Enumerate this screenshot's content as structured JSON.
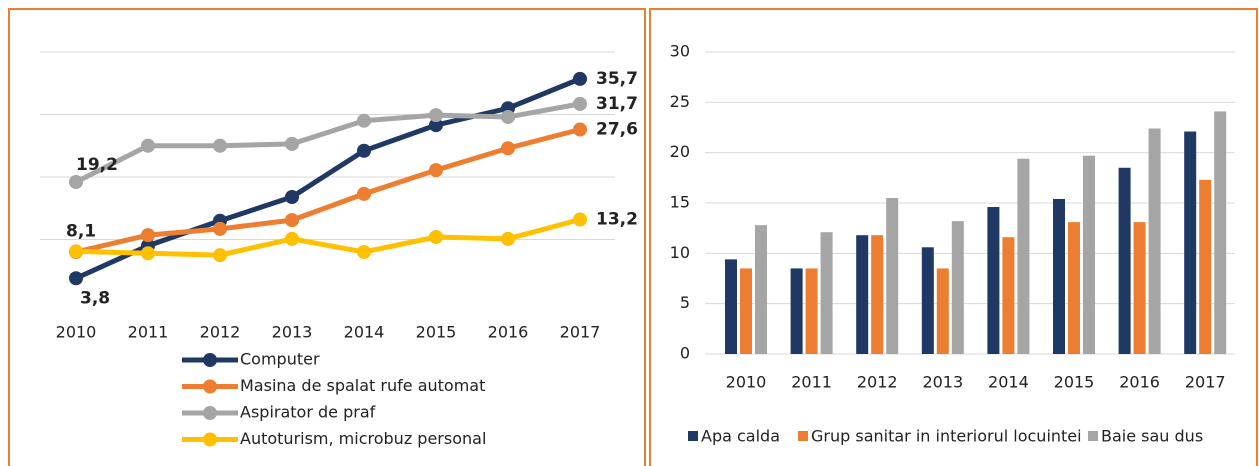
{
  "chart_data": [
    {
      "type": "line",
      "categories": [
        "2010",
        "2011",
        "2012",
        "2013",
        "2014",
        "2015",
        "2016",
        "2017"
      ],
      "ylim": [
        0,
        40
      ],
      "yticks": [
        10,
        20,
        30,
        40
      ],
      "grid": true,
      "series": [
        {
          "name": "Computer",
          "color": "#203864",
          "values": [
            3.8,
            9.0,
            13.0,
            16.8,
            24.2,
            28.3,
            31.0,
            35.7
          ],
          "value_labels": [
            "3,8",
            null,
            null,
            null,
            null,
            null,
            null,
            "35,7"
          ]
        },
        {
          "name": "Masina de spalat rufe automat",
          "color": "#ed7d31",
          "values": [
            8.0,
            10.7,
            11.7,
            13.1,
            17.3,
            21.1,
            24.6,
            27.6
          ],
          "value_labels": [
            null,
            null,
            null,
            null,
            null,
            null,
            null,
            "27,6"
          ]
        },
        {
          "name": "Aspirator de praf",
          "color": "#a5a5a5",
          "values": [
            19.2,
            25.0,
            25.0,
            25.3,
            29.0,
            29.9,
            29.6,
            31.7
          ],
          "value_labels": [
            "19,2",
            null,
            null,
            null,
            null,
            null,
            null,
            "31,7"
          ]
        },
        {
          "name": "Autoturism, microbuz personal",
          "color": "#ffc000",
          "values": [
            8.1,
            7.8,
            7.5,
            10.1,
            8.0,
            10.4,
            10.1,
            13.2
          ],
          "value_labels": [
            "8,1",
            null,
            null,
            null,
            null,
            null,
            null,
            "13,2"
          ]
        }
      ]
    },
    {
      "type": "bar",
      "categories": [
        "2010",
        "2011",
        "2012",
        "2013",
        "2014",
        "2015",
        "2016",
        "2017"
      ],
      "ylim": [
        0,
        30
      ],
      "yticks": [
        0,
        5,
        10,
        15,
        20,
        25,
        30
      ],
      "series": [
        {
          "name": "Apa calda",
          "color": "#203864",
          "values": [
            9.4,
            8.5,
            11.8,
            10.6,
            14.6,
            15.4,
            18.5,
            22.1
          ]
        },
        {
          "name": "Grup sanitar in interiorul locuintei",
          "color": "#ed7d31",
          "values": [
            8.5,
            8.5,
            11.8,
            8.5,
            11.6,
            13.1,
            13.1,
            17.3
          ]
        },
        {
          "name": "Baie sau dus",
          "color": "#a5a5a5",
          "values": [
            12.8,
            12.1,
            15.5,
            13.2,
            19.4,
            19.7,
            22.4,
            24.1
          ]
        }
      ]
    }
  ]
}
